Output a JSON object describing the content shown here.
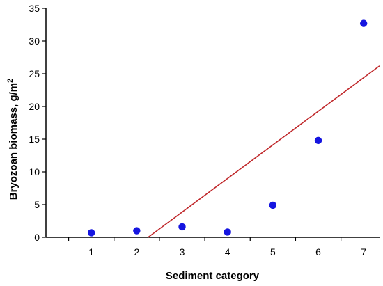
{
  "chart_data": {
    "type": "scatter",
    "title": "",
    "xlabel": "Sediment category",
    "ylabel_prefix": "Bryozoan biomass, g/m",
    "ylabel_superscript": "2",
    "xlim": [
      0,
      7.35
    ],
    "ylim": [
      0,
      35
    ],
    "xticks": [
      1,
      2,
      3,
      4,
      5,
      6,
      7
    ],
    "yticks": [
      0,
      5,
      10,
      15,
      20,
      25,
      30,
      35
    ],
    "grid": false,
    "legend": "none",
    "series": [
      {
        "values": [
          {
            "x": 1,
            "y": 0.7
          },
          {
            "x": 2,
            "y": 1.0
          },
          {
            "x": 3,
            "y": 1.6
          },
          {
            "x": 4,
            "y": 0.8
          },
          {
            "x": 5,
            "y": 4.9
          },
          {
            "x": 6,
            "y": 14.8
          },
          {
            "x": 7,
            "y": 32.7
          }
        ],
        "color": "#1515e0"
      }
    ],
    "trendline": {
      "color": "#c0282b",
      "from": {
        "x": 2.25,
        "y": 0
      },
      "to": {
        "x": 7.35,
        "y": 26.2
      }
    }
  }
}
